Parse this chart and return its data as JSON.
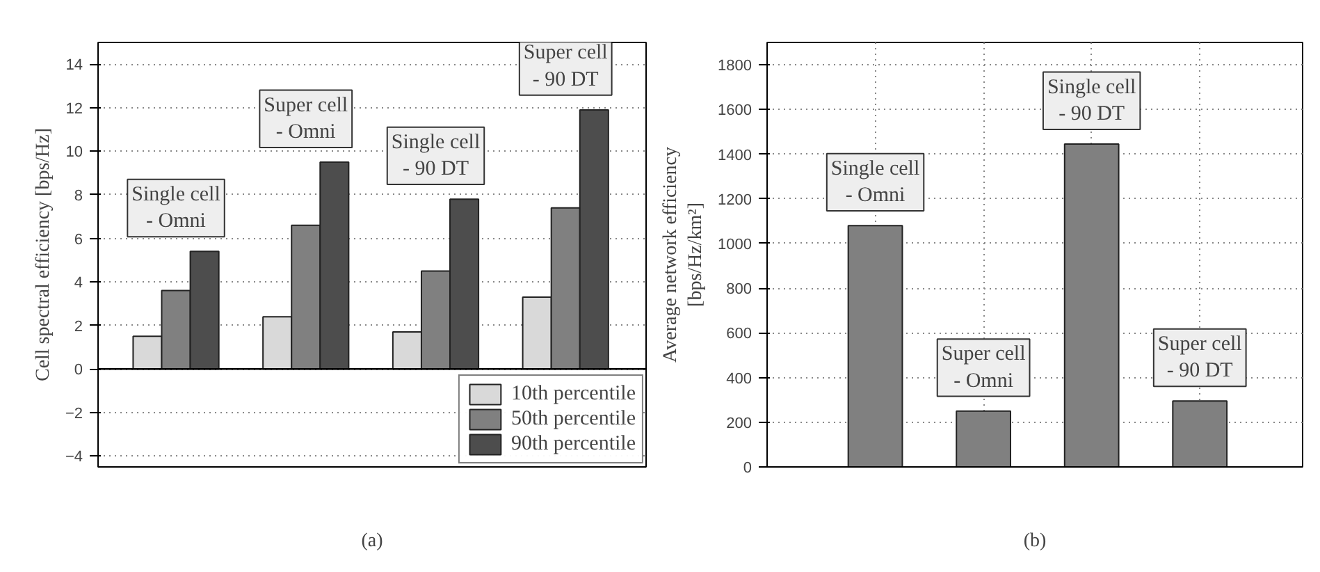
{
  "chart_data": [
    {
      "type": "bar",
      "categories": [
        null,
        null,
        null,
        null
      ],
      "ylabel": "Cell spectral efficiency [bps/Hz]",
      "xlabel": "(a)",
      "series": [
        {
          "name": "10th percentile",
          "color": "#d9d9d9",
          "values": [
            1.5,
            2.4,
            1.7,
            3.3
          ]
        },
        {
          "name": "50th percentile",
          "color": "#808080",
          "values": [
            3.6,
            6.6,
            4.5,
            7.4
          ]
        },
        {
          "name": "90th percentile",
          "color": "#4d4d4d",
          "values": [
            5.4,
            9.5,
            7.8,
            11.9
          ]
        }
      ],
      "ylim": [
        -4.5,
        15
      ],
      "yticks": [
        -4,
        -2,
        0,
        2,
        4,
        6,
        8,
        10,
        12,
        14
      ],
      "grid": "y",
      "legend": "bottom right",
      "annotations": [
        "Single cell\n- Omni",
        "Super cell\n- Omni",
        "Single cell\n- 90 DT",
        "Super cell\n- 90 DT"
      ]
    },
    {
      "type": "bar",
      "categories": [
        null,
        null,
        null,
        null
      ],
      "ylabel": "Average network efficiency\n[bps/Hz/km²]",
      "xlabel": "(b)",
      "values": [
        1080,
        250,
        1445,
        295
      ],
      "color": "#808080",
      "ylim": [
        0,
        1900
      ],
      "yticks": [
        0,
        200,
        400,
        600,
        800,
        1000,
        1200,
        1400,
        1600,
        1800
      ],
      "grid": true,
      "annotations": [
        "Single cell\n- Omni",
        "Super cell\n- Omni",
        "Single cell\n- 90 DT",
        "Super cell\n- 90 DT"
      ]
    }
  ]
}
